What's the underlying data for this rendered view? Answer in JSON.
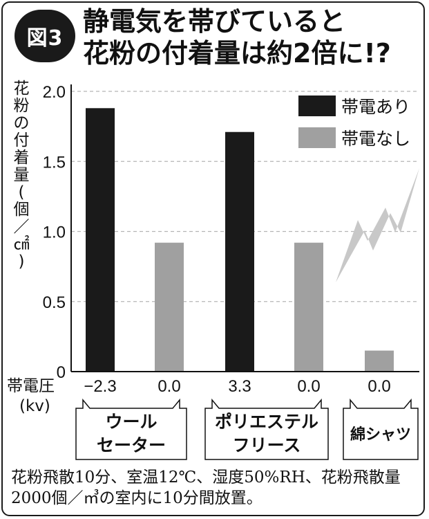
{
  "figure": {
    "badge": "図3",
    "title_line1": "静電気を帯びていると",
    "title_line2": "花粉の付着量は約2倍に!?",
    "ylabel_chars": [
      "花",
      "粉",
      "の",
      "付",
      "着",
      "量",
      "(",
      "個",
      "／",
      "㎠",
      ")"
    ],
    "voltage_label": "帯電圧",
    "voltage_unit": "(kv)",
    "note": "花粉飛散10分、室温12℃、湿度50%RH、花粉飛散量2000個／㎥の室内に10分間放置。"
  },
  "chart_data": {
    "type": "bar",
    "title": "静電気を帯びていると花粉の付着量は約2倍に!?",
    "ylabel": "花粉の付着量(個／㎠)",
    "ylim": [
      0,
      2.0
    ],
    "yticks": [
      0,
      0.5,
      1.0,
      1.5,
      2.0
    ],
    "ytick_labels": [
      "0",
      "0.5",
      "1.0",
      "1.5",
      "2.0"
    ],
    "grid": true,
    "legend": {
      "position": "top-right",
      "entries": [
        {
          "name": "帯電あり",
          "color": "#1a1a1a"
        },
        {
          "name": "帯電なし",
          "color": "#a0a0a0"
        }
      ]
    },
    "bars": [
      {
        "group": "ウールセーター",
        "series": "帯電あり",
        "value": 1.88,
        "voltage": "−2.3",
        "color": "#1a1a1a"
      },
      {
        "group": "ウールセーター",
        "series": "帯電なし",
        "value": 0.92,
        "voltage": "0.0",
        "color": "#a0a0a0"
      },
      {
        "group": "ポリエステルフリース",
        "series": "帯電あり",
        "value": 1.71,
        "voltage": "3.3",
        "color": "#1a1a1a"
      },
      {
        "group": "ポリエステルフリース",
        "series": "帯電なし",
        "value": 0.92,
        "voltage": "0.0",
        "color": "#a0a0a0"
      },
      {
        "group": "綿シャツ",
        "series": "帯電なし",
        "value": 0.15,
        "voltage": "0.0",
        "color": "#a0a0a0"
      }
    ],
    "groups": [
      {
        "lines": [
          "ウール",
          "セーター"
        ]
      },
      {
        "lines": [
          "ポリエステル",
          "フリース"
        ]
      },
      {
        "lines": [
          "綿シャツ"
        ]
      }
    ]
  }
}
